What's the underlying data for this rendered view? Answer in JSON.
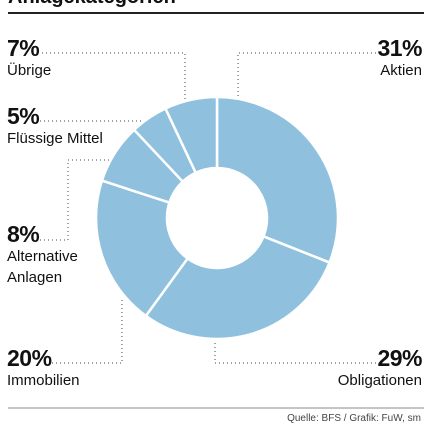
{
  "chart_data": {
    "type": "donut",
    "title": "Anlagekategorien",
    "source": "Quelle: BFS / Grafik: FuW, sm",
    "color": "#8fc1df",
    "categories": [
      "Aktien",
      "Obligationen",
      "Immobilien",
      "Alternative Anlagen",
      "Flüssige Mittel",
      "Übrige"
    ],
    "values": [
      31,
      29,
      20,
      8,
      5,
      7
    ],
    "value_labels": [
      "31%",
      "29%",
      "20%",
      "8%",
      "5%",
      "7%"
    ]
  }
}
